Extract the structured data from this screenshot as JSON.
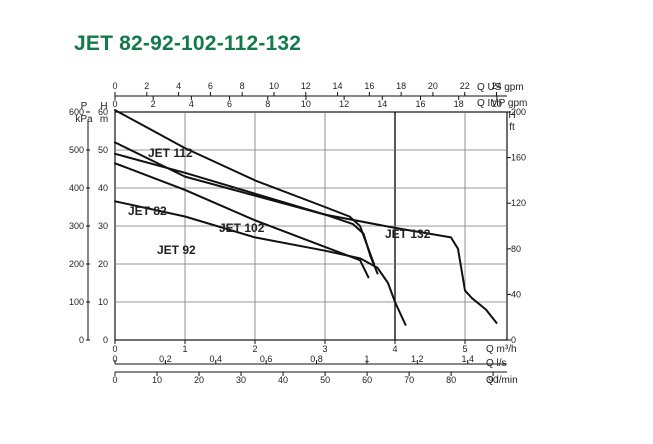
{
  "title": "JET 82-92-102-112-132",
  "chart_data": {
    "type": "line",
    "grid": true,
    "legend": "inline curve labels",
    "axes": {
      "q_m3h": {
        "label": "Q m³/h",
        "range": [
          0,
          5.6
        ],
        "ticks": [
          "0",
          "1",
          "2",
          "3",
          "4",
          "5"
        ],
        "tick_values": [
          0,
          1,
          2,
          3,
          4,
          5
        ]
      },
      "q_ls": {
        "label": "Q l/s",
        "range": [
          0,
          1.556
        ],
        "ticks": [
          "0",
          "0,2",
          "0,4",
          "0,6",
          "0,8",
          "1",
          "1,2",
          "1,4"
        ],
        "tick_values": [
          0,
          0.2,
          0.4,
          0.6,
          0.8,
          1.0,
          1.2,
          1.4
        ]
      },
      "q_lmin": {
        "label": "Q l/min",
        "range": [
          0,
          93.3
        ],
        "ticks": [
          "0",
          "10",
          "20",
          "30",
          "40",
          "50",
          "60",
          "70",
          "80",
          "90"
        ],
        "tick_values": [
          0,
          10,
          20,
          30,
          40,
          50,
          60,
          70,
          80,
          90
        ]
      },
      "q_usgpm": {
        "label": "Q US gpm",
        "range": [
          0,
          24.66
        ],
        "ticks": [
          "0",
          "2",
          "4",
          "6",
          "8",
          "10",
          "12",
          "14",
          "16",
          "18",
          "20",
          "22",
          "24"
        ],
        "tick_values": [
          0,
          2,
          4,
          6,
          8,
          10,
          12,
          14,
          16,
          18,
          20,
          22,
          24
        ]
      },
      "q_impgpm": {
        "label": "Q IMP gpm",
        "range": [
          0,
          20.53
        ],
        "ticks": [
          "0",
          "2",
          "4",
          "6",
          "8",
          "10",
          "12",
          "14",
          "16",
          "18",
          "20"
        ],
        "tick_values": [
          0,
          2,
          4,
          6,
          8,
          10,
          12,
          14,
          16,
          18,
          20
        ]
      },
      "p_kpa": {
        "label_top": "P",
        "label": "kPa",
        "range": [
          0,
          600
        ],
        "ticks": [
          "0",
          "100",
          "200",
          "300",
          "400",
          "500",
          "600"
        ],
        "tick_values": [
          0,
          100,
          200,
          300,
          400,
          500,
          600
        ]
      },
      "h_m": {
        "label_top": "H",
        "label": "m",
        "range": [
          0,
          60
        ],
        "ticks": [
          "0",
          "10",
          "20",
          "30",
          "40",
          "50",
          "60"
        ],
        "tick_values": [
          0,
          10,
          20,
          30,
          40,
          50,
          60
        ]
      },
      "h_ft": {
        "label_top": "H",
        "label": "ft",
        "range": [
          0,
          200
        ],
        "ticks": [
          "0",
          "40",
          "80",
          "120",
          "160",
          "200"
        ],
        "tick_values": [
          0,
          40,
          80,
          120,
          160,
          200
        ]
      }
    },
    "x_axis": "Q m³/h",
    "y_axis": "H m",
    "series": [
      {
        "name": "JET 82",
        "x": [
          0,
          1.0,
          2.0,
          3.0,
          3.5,
          3.58,
          3.62
        ],
        "y": [
          46.5,
          39.5,
          31.5,
          24.5,
          21.0,
          18.0,
          16.5
        ]
      },
      {
        "name": "JET 92",
        "x": [
          0,
          1.0,
          2.0,
          3.0,
          3.5,
          3.75,
          3.9,
          4.0,
          4.15
        ],
        "y": [
          36.5,
          32.5,
          27.0,
          23.5,
          21.5,
          19.0,
          15.0,
          10.0,
          4.0
        ]
      },
      {
        "name": "JET 102",
        "x": [
          0,
          1.0,
          2.0,
          3.0,
          3.4,
          3.55,
          3.65,
          3.75
        ],
        "y": [
          49.0,
          44.0,
          38.5,
          33.0,
          30.5,
          28.0,
          22.0,
          17.5
        ]
      },
      {
        "name": "JET 112",
        "x": [
          0,
          1.0,
          2.0,
          3.0,
          3.35,
          3.5,
          3.6,
          3.7
        ],
        "y": [
          60.5,
          50.5,
          42.0,
          35.0,
          32.5,
          30.0,
          25.0,
          20.0
        ]
      },
      {
        "name": "JET 132",
        "x": [
          0,
          1.0,
          2.0,
          3.0,
          4.0,
          4.8,
          4.9,
          5.0,
          5.1,
          5.3,
          5.45
        ],
        "y": [
          52.0,
          43.0,
          38.0,
          33.0,
          29.5,
          27.0,
          24.0,
          13.0,
          11.0,
          8.0,
          4.5
        ]
      }
    ],
    "annotations": [
      "JET 82",
      "JET 92",
      "JET 102",
      "JET 112",
      "JET 132"
    ]
  }
}
